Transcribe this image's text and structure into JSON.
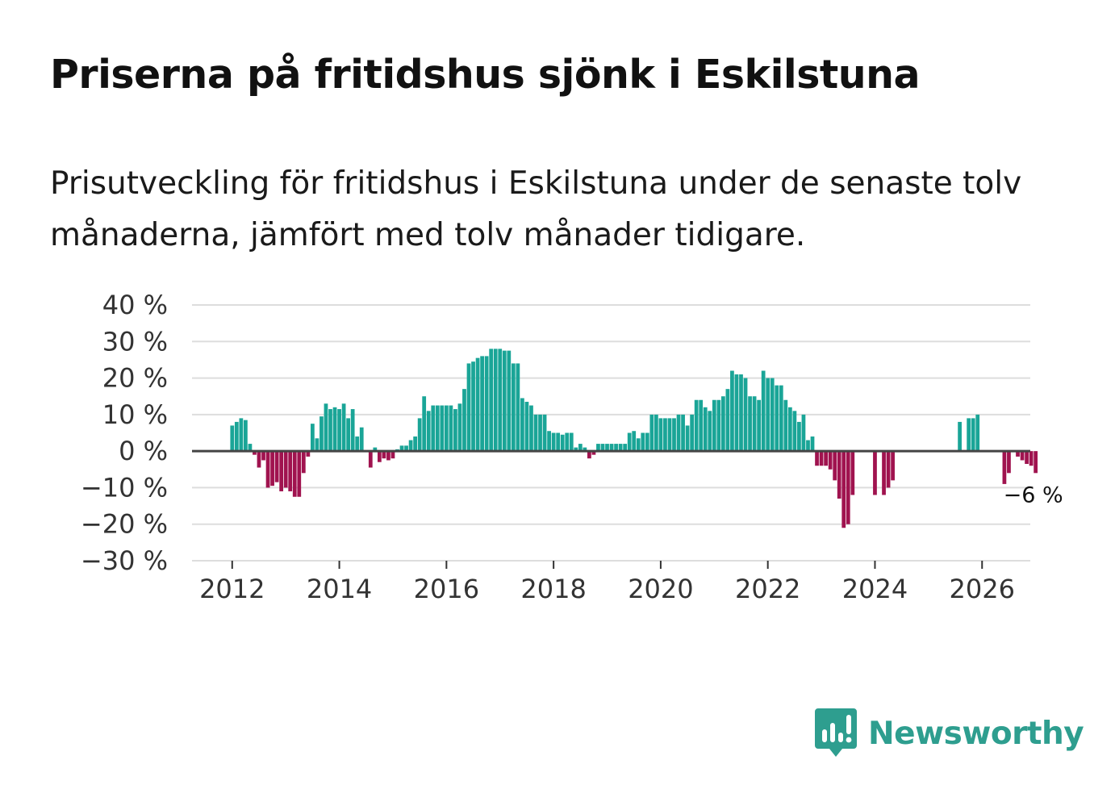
{
  "title": "Priserna på fritidshus sjönk i Eskilstuna",
  "subtitle": "Prisutveckling för fritidshus i Eskilstuna under de senaste tolv månaderna, jämfört med tolv månader tidigare.",
  "brand": {
    "name": "Newsworthy",
    "color": "#2e9e8f"
  },
  "colors": {
    "positive": "#1aa597",
    "negative": "#a0134f",
    "grid": "#dddddd",
    "zero_line": "#444444",
    "axis_text": "#333333"
  },
  "chart_data": {
    "type": "bar",
    "title": "Priserna på fritidshus sjönk i Eskilstuna",
    "xlabel": "",
    "ylabel": "",
    "unit": "%",
    "ylim": [
      -30,
      40
    ],
    "yticks": [
      {
        "value": 40,
        "label": "40 %"
      },
      {
        "value": 30,
        "label": "30 %"
      },
      {
        "value": 20,
        "label": "20 %"
      },
      {
        "value": 10,
        "label": "10 %"
      },
      {
        "value": 0,
        "label": "0 %"
      },
      {
        "value": -10,
        "label": "−10 %"
      },
      {
        "value": -20,
        "label": "−20 %"
      },
      {
        "value": -30,
        "label": "−30 %"
      }
    ],
    "xlim": [
      2011.25,
      2026.9
    ],
    "xticks": [
      {
        "value": 2012,
        "label": "2012"
      },
      {
        "value": 2014,
        "label": "2014"
      },
      {
        "value": 2016,
        "label": "2016"
      },
      {
        "value": 2018,
        "label": "2018"
      },
      {
        "value": 2020,
        "label": "2020"
      },
      {
        "value": 2022,
        "label": "2022"
      },
      {
        "value": 2024,
        "label": "2024"
      },
      {
        "value": 2026,
        "label": "2026"
      }
    ],
    "start": {
      "year": 2012,
      "month": 1
    },
    "frequency": "monthly",
    "values": [
      7,
      8,
      9,
      8.5,
      2,
      -1,
      -4.5,
      -2.5,
      -10,
      -9.5,
      -8.5,
      -11,
      -10,
      -11,
      -12.5,
      -12.5,
      -6,
      -1.5,
      7.5,
      3.5,
      9.5,
      13,
      11.5,
      12,
      11.5,
      13,
      9,
      11.5,
      4,
      6.5,
      null,
      -4.5,
      1,
      -3,
      -2,
      -2.5,
      -2,
      0.5,
      1.5,
      1.5,
      3,
      4,
      9,
      15,
      11,
      12.5,
      12.5,
      12.5,
      12.5,
      12.5,
      11.5,
      13,
      17,
      24,
      24.5,
      25.5,
      26,
      26,
      28,
      28,
      28,
      27.5,
      27.5,
      24,
      24,
      14.5,
      13.5,
      12.5,
      10,
      10,
      10,
      5.5,
      5,
      5,
      4.5,
      5,
      5,
      1,
      2,
      1,
      -2,
      -1,
      2,
      2,
      2,
      2,
      2,
      2,
      2,
      5,
      5.5,
      3.5,
      5,
      5,
      10,
      10,
      9,
      9,
      9,
      9,
      10,
      10,
      7,
      10,
      14,
      14,
      12,
      11,
      14,
      14,
      15,
      17,
      22,
      21,
      21,
      20,
      15,
      15,
      14,
      22,
      20,
      20,
      18,
      18,
      14,
      12,
      11,
      8,
      10,
      3,
      4,
      -4,
      -4,
      -4,
      -5,
      -8,
      -13,
      -21,
      -20,
      -12,
      null,
      null,
      null,
      null,
      -12,
      null,
      -12,
      -10,
      -8,
      null,
      null,
      null,
      null,
      null,
      null,
      null,
      null,
      null,
      null,
      null,
      null,
      null,
      null,
      8,
      null,
      9,
      9,
      10,
      null,
      null,
      null,
      null,
      null,
      -9,
      -6,
      null,
      -1.5,
      -2.5,
      -3.5,
      -4,
      -6
    ],
    "annotation": {
      "label": "−6 %",
      "target": "last"
    }
  }
}
